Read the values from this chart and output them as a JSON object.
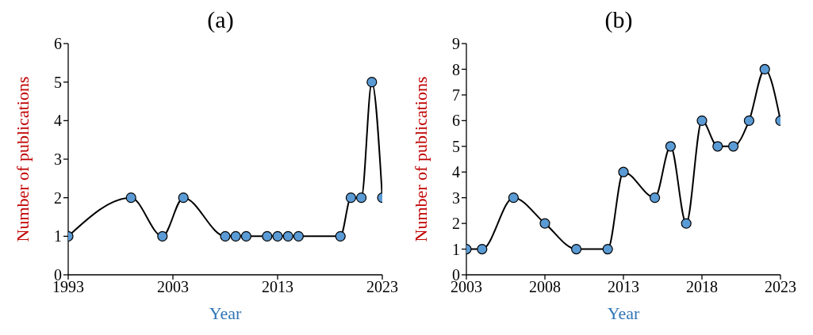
{
  "chart_data": [
    {
      "type": "line",
      "title": "(a)",
      "xlabel": "Year",
      "ylabel": "Number of publications",
      "x": [
        1993,
        1999,
        2002,
        2004,
        2008,
        2009,
        2010,
        2012,
        2013,
        2014,
        2015,
        2019,
        2020,
        2021,
        2022,
        2023
      ],
      "series": [
        {
          "color": "#000000",
          "values": [
            1,
            2,
            1,
            2,
            1,
            1,
            1,
            1,
            1,
            1,
            1,
            1,
            2,
            2,
            5,
            2
          ]
        }
      ],
      "xlim": [
        1993,
        2023
      ],
      "xticks": [
        1993,
        2003,
        2013,
        2023
      ],
      "ylim": [
        0,
        6
      ],
      "yticks": [
        0,
        1,
        2,
        3,
        4,
        5,
        6
      ],
      "grid": false,
      "legend": false,
      "marker": "circle",
      "line_style": "solid"
    },
    {
      "type": "line",
      "title": "(b)",
      "xlabel": "Year",
      "ylabel": "Number of publications",
      "x": [
        2003,
        2004,
        2006,
        2008,
        2010,
        2012,
        2013,
        2015,
        2016,
        2017,
        2018,
        2019,
        2020,
        2021,
        2022,
        2023
      ],
      "series": [
        {
          "color": "#000000",
          "values": [
            1,
            1,
            3,
            2,
            1,
            1,
            4,
            3,
            5,
            2,
            6,
            5,
            5,
            6,
            8,
            6
          ]
        }
      ],
      "xlim": [
        2003,
        2023
      ],
      "xticks": [
        2003,
        2008,
        2013,
        2018,
        2023
      ],
      "ylim": [
        0,
        9
      ],
      "yticks": [
        0,
        1,
        2,
        3,
        4,
        5,
        6,
        7,
        8,
        9
      ],
      "grid": false,
      "legend": false,
      "marker": "circle",
      "line_style": "solid"
    }
  ]
}
